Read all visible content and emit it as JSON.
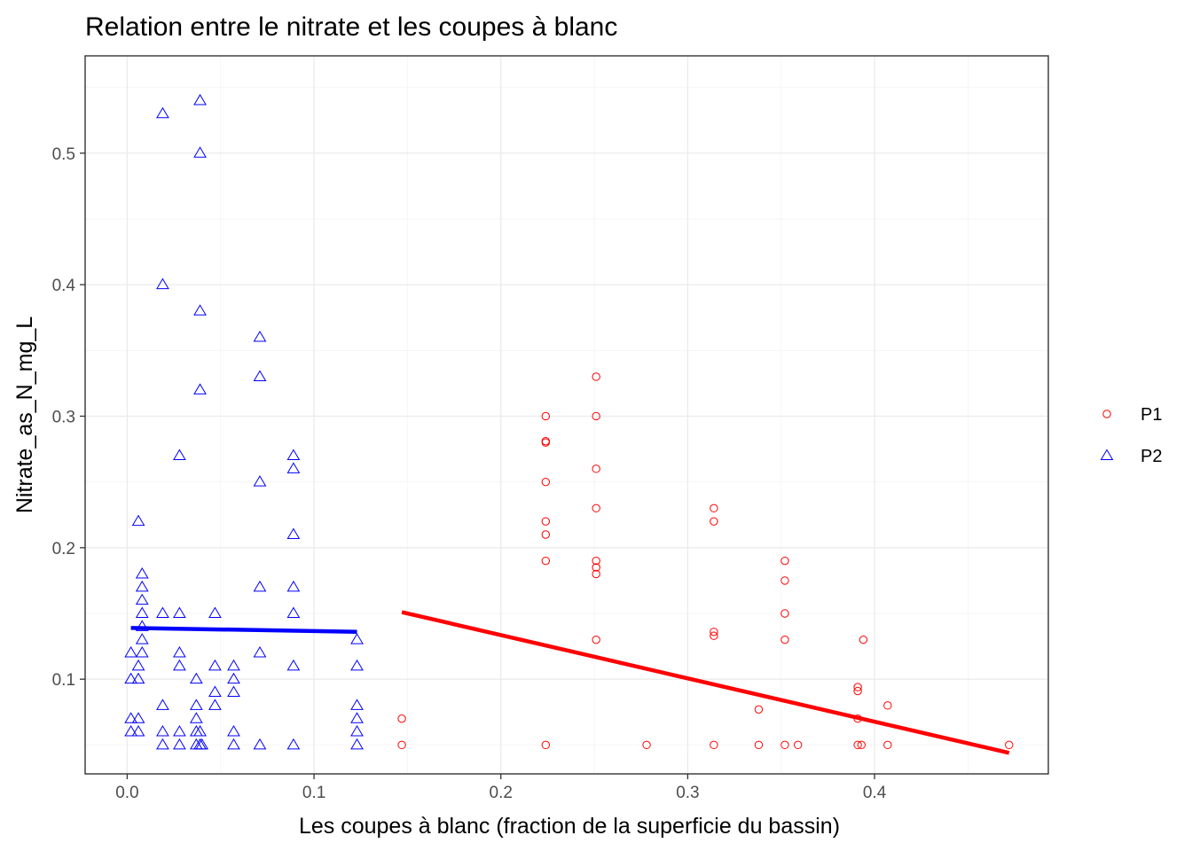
{
  "chart_data": {
    "type": "scatter",
    "title": "Relation entre le nitrate et les coupes à blanc",
    "xlabel": "Les coupes à blanc (fraction de la superficie du bassin)",
    "ylabel": "Nitrate_as_N_mg_L",
    "xlim": [
      -0.0225,
      0.493
    ],
    "ylim": [
      0.028,
      0.574
    ],
    "xticks": [
      0.0,
      0.1,
      0.2,
      0.3,
      0.4
    ],
    "xtick_labels": [
      "0.0",
      "0.1",
      "0.2",
      "0.3",
      "0.4"
    ],
    "yticks": [
      0.1,
      0.2,
      0.3,
      0.4,
      0.5
    ],
    "ytick_labels": [
      "0.1",
      "0.2",
      "0.3",
      "0.4",
      "0.5"
    ],
    "grid": true,
    "legend_position": "right",
    "series": [
      {
        "name": "P1",
        "color": "#ff0000",
        "marker": "circle",
        "points": [
          [
            0.147,
            0.07
          ],
          [
            0.147,
            0.05
          ],
          [
            0.224,
            0.3
          ],
          [
            0.224,
            0.28
          ],
          [
            0.224,
            0.281
          ],
          [
            0.224,
            0.25
          ],
          [
            0.224,
            0.22
          ],
          [
            0.224,
            0.21
          ],
          [
            0.224,
            0.19
          ],
          [
            0.224,
            0.05
          ],
          [
            0.251,
            0.33
          ],
          [
            0.251,
            0.3
          ],
          [
            0.251,
            0.26
          ],
          [
            0.251,
            0.23
          ],
          [
            0.251,
            0.19
          ],
          [
            0.251,
            0.185
          ],
          [
            0.251,
            0.18
          ],
          [
            0.251,
            0.13
          ],
          [
            0.278,
            0.05
          ],
          [
            0.314,
            0.23
          ],
          [
            0.314,
            0.22
          ],
          [
            0.314,
            0.136
          ],
          [
            0.314,
            0.133
          ],
          [
            0.314,
            0.05
          ],
          [
            0.338,
            0.077
          ],
          [
            0.338,
            0.05
          ],
          [
            0.352,
            0.19
          ],
          [
            0.352,
            0.175
          ],
          [
            0.352,
            0.15
          ],
          [
            0.352,
            0.13
          ],
          [
            0.352,
            0.05
          ],
          [
            0.359,
            0.05
          ],
          [
            0.391,
            0.094
          ],
          [
            0.391,
            0.091
          ],
          [
            0.391,
            0.07
          ],
          [
            0.391,
            0.05
          ],
          [
            0.393,
            0.05
          ],
          [
            0.394,
            0.13
          ],
          [
            0.407,
            0.08
          ],
          [
            0.407,
            0.05
          ],
          [
            0.472,
            0.05
          ]
        ],
        "fit": {
          "x": [
            0.147,
            0.472
          ],
          "y": [
            0.151,
            0.044
          ],
          "color": "#ff0000"
        }
      },
      {
        "name": "P2",
        "color": "#0000ff",
        "marker": "triangle",
        "points": [
          [
            0.002,
            0.12
          ],
          [
            0.002,
            0.1
          ],
          [
            0.002,
            0.07
          ],
          [
            0.002,
            0.06
          ],
          [
            0.006,
            0.22
          ],
          [
            0.006,
            0.11
          ],
          [
            0.006,
            0.1
          ],
          [
            0.006,
            0.07
          ],
          [
            0.006,
            0.06
          ],
          [
            0.008,
            0.18
          ],
          [
            0.008,
            0.17
          ],
          [
            0.008,
            0.16
          ],
          [
            0.008,
            0.15
          ],
          [
            0.008,
            0.14
          ],
          [
            0.008,
            0.13
          ],
          [
            0.008,
            0.12
          ],
          [
            0.019,
            0.53
          ],
          [
            0.019,
            0.4
          ],
          [
            0.019,
            0.15
          ],
          [
            0.019,
            0.08
          ],
          [
            0.019,
            0.06
          ],
          [
            0.019,
            0.05
          ],
          [
            0.028,
            0.27
          ],
          [
            0.028,
            0.15
          ],
          [
            0.028,
            0.12
          ],
          [
            0.028,
            0.11
          ],
          [
            0.028,
            0.06
          ],
          [
            0.028,
            0.05
          ],
          [
            0.037,
            0.1
          ],
          [
            0.037,
            0.08
          ],
          [
            0.037,
            0.07
          ],
          [
            0.037,
            0.06
          ],
          [
            0.037,
            0.05
          ],
          [
            0.039,
            0.54
          ],
          [
            0.039,
            0.5
          ],
          [
            0.039,
            0.38
          ],
          [
            0.039,
            0.32
          ],
          [
            0.039,
            0.06
          ],
          [
            0.039,
            0.05
          ],
          [
            0.04,
            0.05
          ],
          [
            0.047,
            0.15
          ],
          [
            0.047,
            0.11
          ],
          [
            0.047,
            0.09
          ],
          [
            0.047,
            0.08
          ],
          [
            0.057,
            0.11
          ],
          [
            0.057,
            0.1
          ],
          [
            0.057,
            0.09
          ],
          [
            0.057,
            0.06
          ],
          [
            0.057,
            0.05
          ],
          [
            0.071,
            0.36
          ],
          [
            0.071,
            0.33
          ],
          [
            0.071,
            0.25
          ],
          [
            0.071,
            0.17
          ],
          [
            0.071,
            0.12
          ],
          [
            0.071,
            0.05
          ],
          [
            0.089,
            0.27
          ],
          [
            0.089,
            0.26
          ],
          [
            0.089,
            0.21
          ],
          [
            0.089,
            0.17
          ],
          [
            0.089,
            0.15
          ],
          [
            0.089,
            0.11
          ],
          [
            0.089,
            0.05
          ],
          [
            0.123,
            0.13
          ],
          [
            0.123,
            0.11
          ],
          [
            0.123,
            0.08
          ],
          [
            0.123,
            0.07
          ],
          [
            0.123,
            0.06
          ],
          [
            0.123,
            0.05
          ]
        ],
        "fit": {
          "x": [
            0.002,
            0.123
          ],
          "y": [
            0.139,
            0.136
          ],
          "color": "#0000ff"
        }
      }
    ]
  }
}
